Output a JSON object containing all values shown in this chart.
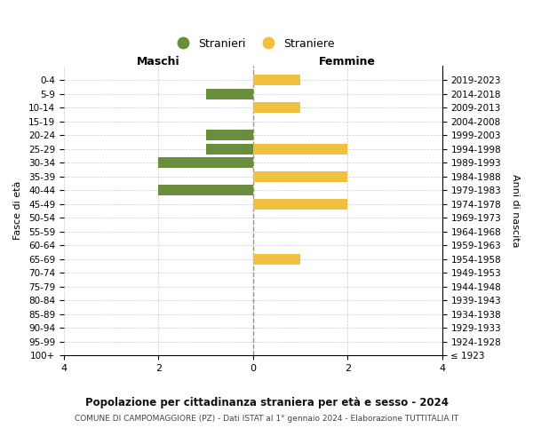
{
  "age_groups": [
    "100+",
    "95-99",
    "90-94",
    "85-89",
    "80-84",
    "75-79",
    "70-74",
    "65-69",
    "60-64",
    "55-59",
    "50-54",
    "45-49",
    "40-44",
    "35-39",
    "30-34",
    "25-29",
    "20-24",
    "15-19",
    "10-14",
    "5-9",
    "0-4"
  ],
  "birth_years": [
    "≤ 1923",
    "1924-1928",
    "1929-1933",
    "1934-1938",
    "1939-1943",
    "1944-1948",
    "1949-1953",
    "1954-1958",
    "1959-1963",
    "1964-1968",
    "1969-1973",
    "1974-1978",
    "1979-1983",
    "1984-1988",
    "1989-1993",
    "1994-1998",
    "1999-2003",
    "2004-2008",
    "2009-2013",
    "2014-2018",
    "2019-2023"
  ],
  "maschi": [
    0,
    0,
    0,
    0,
    0,
    0,
    0,
    0,
    0,
    0,
    0,
    0,
    -2,
    0,
    -2,
    -1,
    -1,
    0,
    0,
    -1,
    0
  ],
  "femmine": [
    0,
    0,
    0,
    0,
    0,
    0,
    0,
    1,
    0,
    0,
    0,
    2,
    0,
    2,
    0,
    2,
    0,
    0,
    1,
    0,
    1
  ],
  "color_maschi": "#6b8e3e",
  "color_femmine": "#f0c040",
  "title": "Popolazione per cittadinanza straniera per età e sesso - 2024",
  "subtitle": "COMUNE DI CAMPOMAGGIORE (PZ) - Dati ISTAT al 1° gennaio 2024 - Elaborazione TUTTITALIA.IT",
  "xlabel_left": "Maschi",
  "xlabel_right": "Femmine",
  "ylabel_left": "Fasce di età",
  "ylabel_right": "Anni di nascita",
  "legend_maschi": "Stranieri",
  "legend_femmine": "Straniere",
  "xlim": [
    -4,
    4
  ],
  "xticks": [
    -4,
    -2,
    0,
    2,
    4
  ],
  "xticklabels": [
    "4",
    "2",
    "0",
    "2",
    "4"
  ],
  "bg_color": "#ffffff",
  "grid_color": "#cccccc",
  "bar_height": 0.75
}
